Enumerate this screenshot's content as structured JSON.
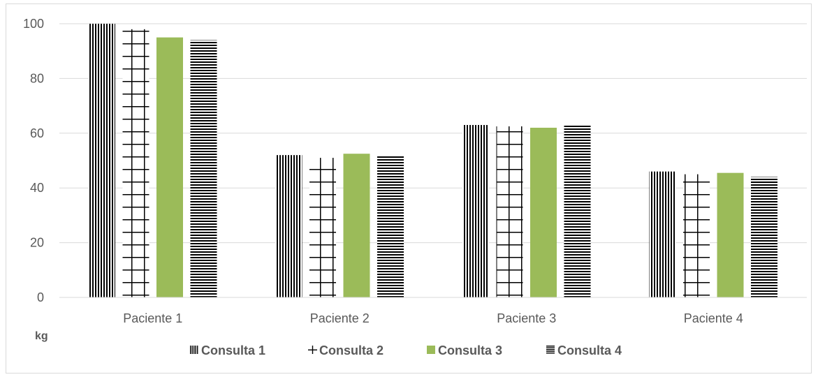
{
  "chart_data": {
    "type": "bar",
    "title": "",
    "xlabel": "",
    "ylabel": "kg",
    "categories": [
      "Paciente 1",
      "Paciente 2",
      "Paciente 3",
      "Paciente 4"
    ],
    "series": [
      {
        "name": "Consulta 1",
        "values": [
          100,
          52,
          63,
          46
        ],
        "pattern": "vertical-lines",
        "color": "#000000"
      },
      {
        "name": "Consulta 2",
        "values": [
          98,
          51,
          62.5,
          45
        ],
        "pattern": "grid",
        "color": "#000000"
      },
      {
        "name": "Consulta 3",
        "values": [
          95,
          52.5,
          62,
          45.5
        ],
        "pattern": "solid",
        "color": "#9bbb59"
      },
      {
        "name": "Consulta 4",
        "values": [
          94,
          52,
          63,
          44
        ],
        "pattern": "horizontal-lines",
        "color": "#000000"
      }
    ],
    "ylim": [
      0,
      100
    ],
    "yticks": [
      0,
      20,
      40,
      60,
      80,
      100
    ],
    "grid": true,
    "legend": "bottom"
  }
}
